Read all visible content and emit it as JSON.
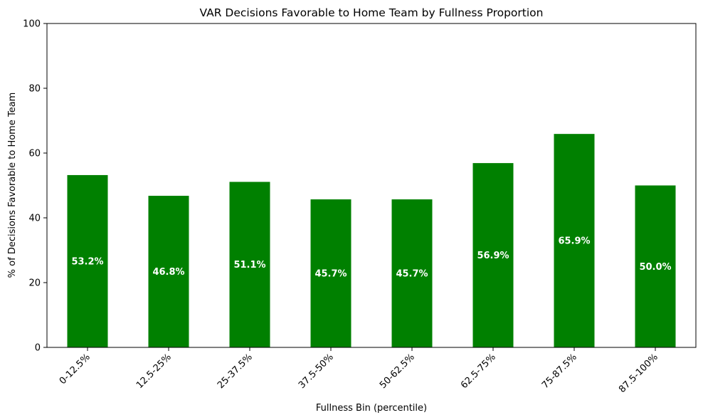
{
  "chart_data": {
    "type": "bar",
    "title": "VAR Decisions Favorable to Home Team by Fullness Proportion",
    "xlabel": "Fullness Bin (percentile)",
    "ylabel": "% of Decisions Favorable to Home Team",
    "categories": [
      "0-12.5%",
      "12.5-25%",
      "25-37.5%",
      "37.5-50%",
      "50-62.5%",
      "62.5-75%",
      "75-87.5%",
      "87.5-100%"
    ],
    "values": [
      53.2,
      46.8,
      51.1,
      45.7,
      45.7,
      56.9,
      65.9,
      50.0
    ],
    "value_labels": [
      "53.2%",
      "46.8%",
      "51.1%",
      "45.7%",
      "45.7%",
      "56.9%",
      "65.9%",
      "50.0%"
    ],
    "ylim": [
      0,
      100
    ],
    "yticks": [
      "0",
      "20",
      "40",
      "60",
      "80",
      "100"
    ],
    "bar_color": "#008000",
    "grid": false,
    "legend": false
  }
}
